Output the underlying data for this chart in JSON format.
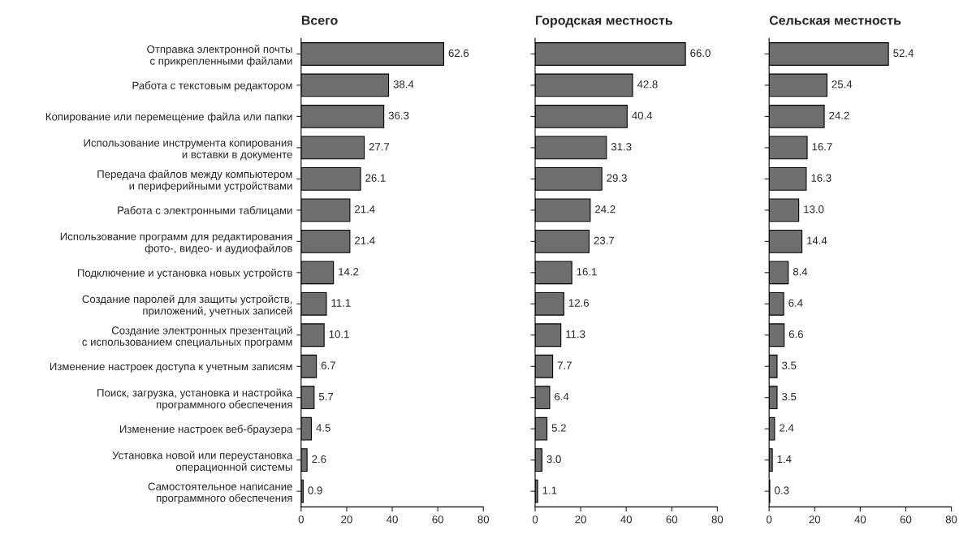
{
  "chart_data": [
    {
      "type": "bar",
      "orientation": "horizontal",
      "title": "Всего",
      "categories": [
        "Отправка электронной почты\nс прикрепленными файлами",
        "Работа с текстовым редактором",
        "Копирование или перемещение файла или папки",
        "Использование инструмента копирования\nи вставки в документе",
        "Передача файлов между компьютером\nи периферийными устройствами",
        "Работа с электронными таблицами",
        "Использование программ для редактирования\nфото-, видео- и аудиофайлов",
        "Подключение и установка новых устройств",
        "Создание паролей для защиты устройств,\nприложений, учетных записей",
        "Создание электронных презентаций\nс использованием специальных программ",
        "Изменение настроек доступа к учетным записям",
        "Поиск, загрузка, установка и настройка\nпрограммного обеспечения",
        "Изменение настроек веб-браузера",
        "Установка новой или переустановка\nоперационной системы",
        "Самостоятельное написание\nпрограммного обеспечения"
      ],
      "values": [
        62.6,
        38.4,
        36.3,
        27.7,
        26.1,
        21.4,
        21.4,
        14.2,
        11.1,
        10.1,
        6.7,
        5.7,
        4.5,
        2.6,
        0.9
      ],
      "color": "#6e6e6e",
      "xlim": [
        0,
        80
      ],
      "xticks": [
        0,
        20,
        40,
        60,
        80
      ],
      "data_labels": true,
      "grid": false,
      "legend": false
    },
    {
      "type": "bar",
      "orientation": "horizontal",
      "title": "Городская местность",
      "categories": [
        null,
        null,
        null,
        null,
        null,
        null,
        null,
        null,
        null,
        null,
        null,
        null,
        null,
        null,
        null
      ],
      "values": [
        66.0,
        42.8,
        40.4,
        31.3,
        29.3,
        24.2,
        23.7,
        16.1,
        12.6,
        11.3,
        7.7,
        6.4,
        5.2,
        3.0,
        1.1
      ],
      "value_labels": [
        "66.0",
        "42.8",
        "40.4",
        "31.3",
        "29.3",
        "24.2",
        "23.7",
        "16.1",
        "12.6",
        "11.3",
        "7.7",
        "6.4",
        "5.2",
        "3.0",
        "1.1"
      ],
      "color": "#6e6e6e",
      "xlim": [
        0,
        80
      ],
      "xticks": [
        0,
        20,
        40,
        60,
        80
      ],
      "grid": false,
      "legend": false
    },
    {
      "type": "bar",
      "orientation": "horizontal",
      "title": "Сельская местность",
      "categories": [
        null,
        null,
        null,
        null,
        null,
        null,
        null,
        null,
        null,
        null,
        null,
        null,
        null,
        null,
        null
      ],
      "values": [
        52.4,
        25.4,
        24.2,
        16.7,
        16.3,
        13.0,
        14.4,
        8.4,
        6.4,
        6.6,
        3.5,
        3.5,
        2.4,
        1.4,
        0.3
      ],
      "value_labels": [
        "52.4",
        "25.4",
        "24.2",
        "16.7",
        "16.3",
        "13.0",
        "14.4",
        "8.4",
        "6.4",
        "6.6",
        "3.5",
        "3.5",
        "2.4",
        "1.4",
        "0.3"
      ],
      "color": "#6e6e6e",
      "xlim": [
        0,
        80
      ],
      "xticks": [
        0,
        20,
        40,
        60,
        80
      ],
      "grid": false,
      "legend": false
    }
  ]
}
